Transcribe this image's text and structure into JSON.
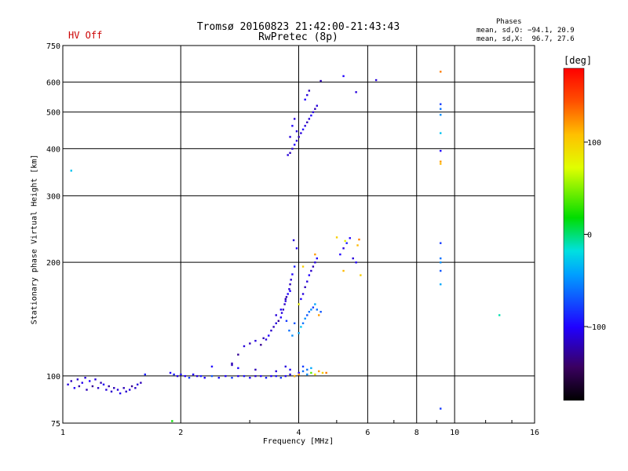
{
  "header": {
    "title_line1": "Tromsø 20160823 21:42:00-21:43:43",
    "title_line2": "RwPretec (8p)",
    "status": "HV Off",
    "phases_heading": "Phases",
    "phases_o": "mean, sd,O: −94.1, 20.9",
    "phases_x": "mean, sd,X:  96.7, 27.6"
  },
  "colorbar": {
    "unit": "[deg]",
    "ticks": [
      {
        "label": "100",
        "value": 100
      },
      {
        "label": "0",
        "value": 0
      },
      {
        "label": "−100",
        "value": -100
      }
    ],
    "range": [
      -180,
      180
    ]
  },
  "chart_data": {
    "type": "scatter",
    "title": "Tromsø 20160823 21:42:00-21:43:43",
    "subtitle": "RwPretec (8p)",
    "xlabel": "Frequency [MHz]",
    "ylabel": "Stationary phase Virtual Height [km]",
    "xscale": "log",
    "yscale": "log",
    "xlim": [
      1,
      16
    ],
    "ylim": [
      75,
      750
    ],
    "x_ticks": [
      {
        "value": 1,
        "label": "1"
      },
      {
        "value": 2,
        "label": "2"
      },
      {
        "value": 4,
        "label": "4"
      },
      {
        "value": 6,
        "label": "6"
      },
      {
        "value": 8,
        "label": "8"
      },
      {
        "value": 10,
        "label": "10"
      },
      {
        "value": 16,
        "label": "16"
      }
    ],
    "y_ticks": [
      {
        "value": 75,
        "label": "75"
      },
      {
        "value": 100,
        "label": "100"
      },
      {
        "value": 200,
        "label": "200"
      },
      {
        "value": 300,
        "label": "300"
      },
      {
        "value": 400,
        "label": "400"
      },
      {
        "value": 500,
        "label": "500"
      },
      {
        "value": 600,
        "label": "600"
      },
      {
        "value": 750,
        "label": "750"
      }
    ],
    "grid": true,
    "color_scale": "phase [deg], -180 to 180",
    "series": [
      {
        "name": "echoes",
        "points": [
          [
            1.03,
            95,
            -110
          ],
          [
            1.05,
            97,
            -120
          ],
          [
            1.07,
            93,
            -100
          ],
          [
            1.09,
            98,
            -115
          ],
          [
            1.1,
            94,
            -125
          ],
          [
            1.12,
            96,
            -105
          ],
          [
            1.14,
            99,
            -110
          ],
          [
            1.15,
            92,
            -120
          ],
          [
            1.17,
            97,
            -100
          ],
          [
            1.19,
            94,
            -130
          ],
          [
            1.21,
            98,
            -110
          ],
          [
            1.23,
            93,
            -115
          ],
          [
            1.25,
            96,
            -120
          ],
          [
            1.27,
            95,
            -105
          ],
          [
            1.29,
            92,
            -110
          ],
          [
            1.31,
            94,
            -125
          ],
          [
            1.33,
            91,
            -115
          ],
          [
            1.35,
            93,
            -120
          ],
          [
            1.38,
            92,
            -110
          ],
          [
            1.4,
            90,
            -105
          ],
          [
            1.43,
            93,
            -120
          ],
          [
            1.45,
            91,
            -115
          ],
          [
            1.48,
            92,
            -110
          ],
          [
            1.5,
            94,
            -130
          ],
          [
            1.53,
            93,
            -115
          ],
          [
            1.55,
            95,
            -110
          ],
          [
            1.58,
            96,
            -120
          ],
          [
            1.62,
            101,
            -90
          ],
          [
            1.05,
            350,
            -30
          ],
          [
            1.88,
            102,
            -100
          ],
          [
            1.92,
            101,
            -90
          ],
          [
            1.96,
            100,
            -110
          ],
          [
            2.0,
            101,
            -95
          ],
          [
            2.05,
            100,
            -100
          ],
          [
            2.1,
            99,
            -80
          ],
          [
            2.15,
            101,
            -100
          ],
          [
            2.2,
            100,
            -110
          ],
          [
            2.25,
            100,
            -90
          ],
          [
            2.3,
            99,
            -100
          ],
          [
            2.4,
            100,
            -70
          ],
          [
            2.5,
            99,
            -95
          ],
          [
            2.6,
            100,
            -100
          ],
          [
            2.7,
            99,
            -80
          ],
          [
            2.8,
            100,
            -105
          ],
          [
            2.9,
            100,
            -95
          ],
          [
            3.0,
            99,
            -100
          ],
          [
            3.1,
            100,
            -110
          ],
          [
            3.2,
            100,
            -100
          ],
          [
            3.3,
            99,
            -90
          ],
          [
            3.4,
            100,
            -100
          ],
          [
            3.5,
            100,
            -95
          ],
          [
            3.6,
            99,
            -80
          ],
          [
            3.7,
            100,
            -100
          ],
          [
            3.8,
            101,
            -110
          ],
          [
            3.9,
            100,
            -90
          ],
          [
            4.0,
            102,
            -100
          ],
          [
            4.1,
            103,
            -60
          ],
          [
            4.2,
            101,
            -50
          ],
          [
            4.3,
            102,
            40
          ],
          [
            4.4,
            101,
            90
          ],
          [
            4.5,
            103,
            120
          ],
          [
            4.6,
            102,
            100
          ],
          [
            4.7,
            102,
            130
          ],
          [
            3.9,
            100,
            110
          ],
          [
            4.0,
            101,
            120
          ],
          [
            3.7,
            106,
            -110
          ],
          [
            3.8,
            104,
            -100
          ],
          [
            4.1,
            106,
            -80
          ],
          [
            4.2,
            104,
            -60
          ],
          [
            4.3,
            105,
            -40
          ],
          [
            2.8,
            105,
            -100
          ],
          [
            3.1,
            104,
            -120
          ],
          [
            3.5,
            103,
            -110
          ],
          [
            2.4,
            106,
            -100
          ],
          [
            2.7,
            107,
            -120
          ],
          [
            1.9,
            76,
            20
          ],
          [
            2.7,
            108,
            -120
          ],
          [
            2.8,
            114,
            -130
          ],
          [
            2.9,
            120,
            -110
          ],
          [
            3.0,
            122,
            -120
          ],
          [
            3.1,
            124,
            -110
          ],
          [
            3.2,
            121,
            -130
          ],
          [
            3.25,
            126,
            -120
          ],
          [
            3.3,
            125,
            -110
          ],
          [
            3.35,
            128,
            -100
          ],
          [
            3.4,
            132,
            -115
          ],
          [
            3.45,
            135,
            -120
          ],
          [
            3.5,
            138,
            -110
          ],
          [
            3.55,
            140,
            -130
          ],
          [
            3.6,
            143,
            -100
          ],
          [
            3.62,
            147,
            -110
          ],
          [
            3.65,
            150,
            -120
          ],
          [
            3.68,
            155,
            -115
          ],
          [
            3.7,
            158,
            -110
          ],
          [
            3.72,
            162,
            -120
          ],
          [
            3.75,
            165,
            -100
          ],
          [
            3.78,
            170,
            -110
          ],
          [
            3.8,
            175,
            -120
          ],
          [
            3.82,
            180,
            -110
          ],
          [
            3.85,
            186,
            -100
          ],
          [
            3.5,
            145,
            -110
          ],
          [
            3.6,
            150,
            -100
          ],
          [
            3.7,
            160,
            -120
          ],
          [
            3.8,
            168,
            -100
          ],
          [
            3.72,
            140,
            -80
          ],
          [
            3.78,
            132,
            -60
          ],
          [
            3.85,
            128,
            -50
          ],
          [
            3.9,
            138,
            -70
          ],
          [
            3.88,
            229,
            -110
          ],
          [
            3.95,
            218,
            -100
          ],
          [
            3.9,
            195,
            -90
          ],
          [
            4.0,
            130,
            -40
          ],
          [
            4.05,
            135,
            -30
          ],
          [
            4.1,
            138,
            -60
          ],
          [
            4.15,
            142,
            -50
          ],
          [
            4.2,
            145,
            -70
          ],
          [
            4.25,
            148,
            -60
          ],
          [
            4.3,
            150,
            -50
          ],
          [
            4.35,
            152,
            -80
          ],
          [
            4.4,
            155,
            -40
          ],
          [
            4.45,
            150,
            -60
          ],
          [
            4.5,
            145,
            120
          ],
          [
            4.55,
            148,
            -70
          ],
          [
            4.05,
            160,
            -100
          ],
          [
            4.1,
            165,
            -110
          ],
          [
            4.15,
            172,
            -120
          ],
          [
            4.2,
            178,
            -110
          ],
          [
            4.25,
            185,
            -100
          ],
          [
            4.3,
            190,
            -115
          ],
          [
            4.35,
            195,
            -120
          ],
          [
            4.4,
            200,
            -110
          ],
          [
            4.45,
            205,
            -100
          ],
          [
            4.0,
            155,
            80
          ],
          [
            4.4,
            210,
            120
          ],
          [
            4.1,
            195,
            100
          ],
          [
            5.1,
            210,
            -100
          ],
          [
            5.2,
            218,
            -110
          ],
          [
            5.3,
            225,
            -90
          ],
          [
            5.4,
            232,
            -100
          ],
          [
            5.5,
            205,
            -110
          ],
          [
            5.6,
            200,
            -100
          ],
          [
            5.65,
            222,
            110
          ],
          [
            5.7,
            230,
            130
          ],
          [
            5.75,
            185,
            100
          ],
          [
            5.2,
            190,
            110
          ],
          [
            5.0,
            233,
            100
          ],
          [
            5.25,
            228,
            80
          ],
          [
            3.75,
            385,
            -110
          ],
          [
            3.8,
            390,
            -120
          ],
          [
            3.85,
            400,
            -110
          ],
          [
            3.9,
            410,
            -100
          ],
          [
            3.95,
            420,
            -110
          ],
          [
            4.0,
            430,
            -120
          ],
          [
            4.05,
            440,
            -110
          ],
          [
            4.1,
            450,
            -100
          ],
          [
            4.15,
            460,
            -110
          ],
          [
            4.2,
            470,
            -120
          ],
          [
            4.25,
            480,
            -110
          ],
          [
            4.3,
            490,
            -100
          ],
          [
            4.35,
            500,
            -110
          ],
          [
            4.4,
            510,
            -120
          ],
          [
            4.45,
            520,
            -110
          ],
          [
            4.15,
            540,
            -100
          ],
          [
            4.2,
            555,
            -110
          ],
          [
            4.25,
            570,
            -120
          ],
          [
            3.8,
            430,
            -110
          ],
          [
            3.85,
            460,
            -100
          ],
          [
            3.9,
            480,
            -110
          ],
          [
            3.95,
            445,
            -110
          ],
          [
            4.55,
            605,
            -120
          ],
          [
            5.2,
            623,
            -100
          ],
          [
            5.6,
            565,
            -110
          ],
          [
            6.3,
            608,
            -110
          ],
          [
            9.2,
            640,
            130
          ],
          [
            9.2,
            525,
            -80
          ],
          [
            9.2,
            510,
            -60
          ],
          [
            9.2,
            492,
            -50
          ],
          [
            9.2,
            440,
            -30
          ],
          [
            9.2,
            395,
            -100
          ],
          [
            9.2,
            370,
            120
          ],
          [
            9.2,
            365,
            110
          ],
          [
            9.2,
            225,
            -80
          ],
          [
            9.2,
            205,
            -60
          ],
          [
            9.2,
            200,
            -50
          ],
          [
            9.2,
            190,
            -70
          ],
          [
            9.2,
            175,
            -40
          ],
          [
            9.2,
            82,
            -80
          ],
          [
            13.0,
            145,
            -10
          ]
        ]
      }
    ]
  }
}
